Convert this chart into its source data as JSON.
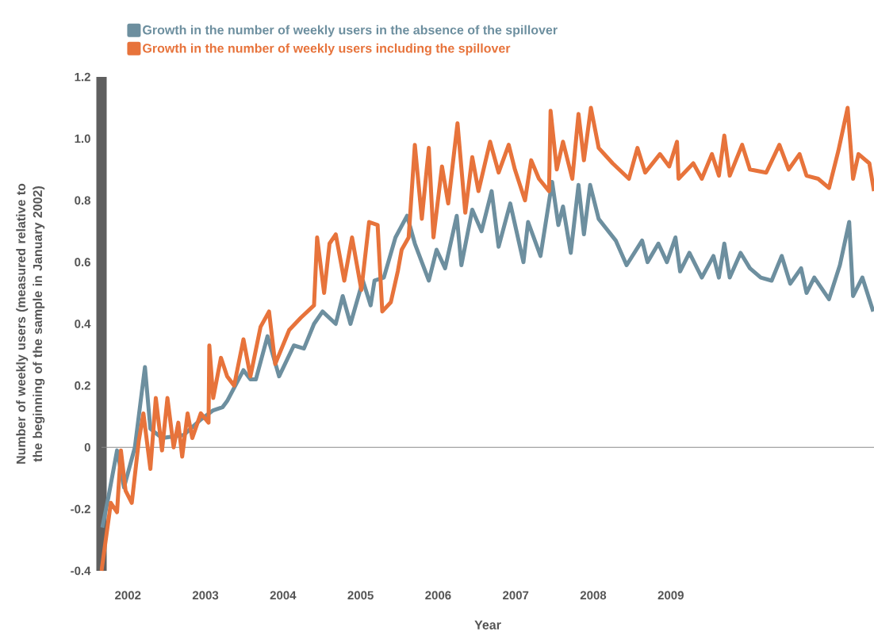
{
  "chart_data": {
    "type": "line",
    "xlabel": "Year",
    "ylabel": "Number of weekly users (measured relative to the beginning of the sample in January 2002)",
    "xlim": [
      2001.66,
      2011.62
    ],
    "ylim": [
      -0.4,
      1.2
    ],
    "xticks": [
      2002,
      2003,
      2004,
      2005,
      2006,
      2007,
      2008,
      2009
    ],
    "yticks": [
      -0.4,
      -0.2,
      0,
      0.2,
      0.4,
      0.6,
      0.8,
      {
        "value": 1,
        "label": "1.0"
      },
      1.2
    ],
    "legend": "top left",
    "ref_lines": [
      {
        "axis": "y",
        "value": 0,
        "color": "#8a8a8a"
      }
    ],
    "series": [
      {
        "name": "Growth in the number of weekly users in the absence of the spillover",
        "color": "#6d8f9f",
        "x": [
          2001.67,
          2001.75,
          2001.86,
          2001.95,
          2002.09,
          2002.22,
          2002.29,
          2002.44,
          2002.72,
          2002.94,
          2003.1,
          2003.22,
          2003.28,
          2003.49,
          2003.58,
          2003.65,
          2003.8,
          2003.95,
          2004.14,
          2004.27,
          2004.4,
          2004.51,
          2004.68,
          2004.77,
          2004.87,
          2005.03,
          2005.13,
          2005.18,
          2005.3,
          2005.45,
          2005.6,
          2005.7,
          2005.88,
          2005.98,
          2006.09,
          2006.24,
          2006.3,
          2006.44,
          2006.56,
          2006.69,
          2006.78,
          2006.93,
          2007.1,
          2007.16,
          2007.32,
          2007.47,
          2007.55,
          2007.61,
          2007.71,
          2007.81,
          2007.88,
          2007.96,
          2008.07,
          2008.29,
          2008.43,
          2008.63,
          2008.7,
          2008.84,
          2008.95,
          2009.06,
          2009.12,
          2009.24,
          2009.4,
          2009.55,
          2009.62,
          2009.69,
          2009.76,
          2009.9,
          2010.02,
          2010.16,
          2010.3,
          2010.43,
          2010.54,
          2010.68,
          2010.75,
          2010.85,
          2011.04,
          2011.18,
          2011.3,
          2011.35,
          2011.47,
          2011.61
        ],
        "values": [
          -0.26,
          -0.16,
          -0.01,
          -0.13,
          0.0,
          0.26,
          0.06,
          0.03,
          0.04,
          0.09,
          0.12,
          0.13,
          0.15,
          0.25,
          0.22,
          0.22,
          0.36,
          0.23,
          0.33,
          0.32,
          0.4,
          0.44,
          0.4,
          0.49,
          0.4,
          0.54,
          0.46,
          0.54,
          0.55,
          0.68,
          0.75,
          0.66,
          0.54,
          0.64,
          0.58,
          0.75,
          0.59,
          0.77,
          0.7,
          0.83,
          0.65,
          0.79,
          0.6,
          0.73,
          0.62,
          0.86,
          0.72,
          0.78,
          0.63,
          0.85,
          0.69,
          0.85,
          0.74,
          0.67,
          0.59,
          0.67,
          0.6,
          0.66,
          0.6,
          0.68,
          0.57,
          0.63,
          0.55,
          0.62,
          0.55,
          0.66,
          0.55,
          0.63,
          0.58,
          0.55,
          0.54,
          0.62,
          0.53,
          0.58,
          0.5,
          0.55,
          0.48,
          0.59,
          0.73,
          0.49,
          0.55,
          0.44
        ]
      },
      {
        "name": "Growth in the number of weekly users including the spillover",
        "color": "#e7733b",
        "x": [
          2001.66,
          2001.78,
          2001.86,
          2001.91,
          2001.97,
          2002.05,
          2002.14,
          2002.2,
          2002.29,
          2002.36,
          2002.44,
          2002.51,
          2002.59,
          2002.65,
          2002.7,
          2002.77,
          2002.83,
          2002.94,
          2003.04,
          2003.05,
          2003.1,
          2003.2,
          2003.28,
          2003.37,
          2003.49,
          2003.58,
          2003.71,
          2003.82,
          2003.9,
          2004.08,
          2004.23,
          2004.4,
          2004.44,
          2004.53,
          2004.6,
          2004.68,
          2004.79,
          2004.89,
          2005.01,
          2005.11,
          2005.22,
          2005.28,
          2005.39,
          2005.48,
          2005.53,
          2005.62,
          2005.7,
          2005.79,
          2005.88,
          2005.94,
          2006.05,
          2006.13,
          2006.25,
          2006.35,
          2006.44,
          2006.52,
          2006.67,
          2006.78,
          2006.91,
          2006.99,
          2007.12,
          2007.2,
          2007.3,
          2007.43,
          2007.45,
          2007.53,
          2007.61,
          2007.73,
          2007.81,
          2007.88,
          2007.97,
          2008.07,
          2008.25,
          2008.46,
          2008.57,
          2008.67,
          2008.86,
          2008.98,
          2009.08,
          2009.1,
          2009.29,
          2009.4,
          2009.53,
          2009.62,
          2009.69,
          2009.76,
          2009.92,
          2010.02,
          2010.23,
          2010.4,
          2010.52,
          2010.66,
          2010.75,
          2010.9,
          2011.04,
          2011.16,
          2011.28,
          2011.35,
          2011.42,
          2011.56,
          2011.62
        ],
        "values": [
          -0.4,
          -0.18,
          -0.21,
          -0.01,
          -0.14,
          -0.18,
          0.02,
          0.11,
          -0.07,
          0.16,
          -0.01,
          0.16,
          0.0,
          0.08,
          -0.03,
          0.11,
          0.03,
          0.11,
          0.08,
          0.33,
          0.16,
          0.29,
          0.23,
          0.2,
          0.35,
          0.23,
          0.39,
          0.44,
          0.27,
          0.38,
          0.42,
          0.46,
          0.68,
          0.5,
          0.66,
          0.69,
          0.54,
          0.68,
          0.51,
          0.73,
          0.72,
          0.44,
          0.47,
          0.57,
          0.64,
          0.68,
          0.98,
          0.74,
          0.97,
          0.68,
          0.91,
          0.79,
          1.05,
          0.76,
          0.94,
          0.83,
          0.99,
          0.89,
          0.98,
          0.9,
          0.8,
          0.93,
          0.87,
          0.83,
          1.09,
          0.9,
          0.99,
          0.87,
          1.08,
          0.93,
          1.1,
          0.97,
          0.92,
          0.87,
          0.97,
          0.89,
          0.95,
          0.91,
          0.99,
          0.87,
          0.92,
          0.87,
          0.95,
          0.88,
          1.01,
          0.88,
          0.98,
          0.9,
          0.89,
          0.98,
          0.9,
          0.95,
          0.88,
          0.87,
          0.84,
          0.96,
          1.1,
          0.87,
          0.95,
          0.92,
          0.83
        ]
      }
    ]
  }
}
